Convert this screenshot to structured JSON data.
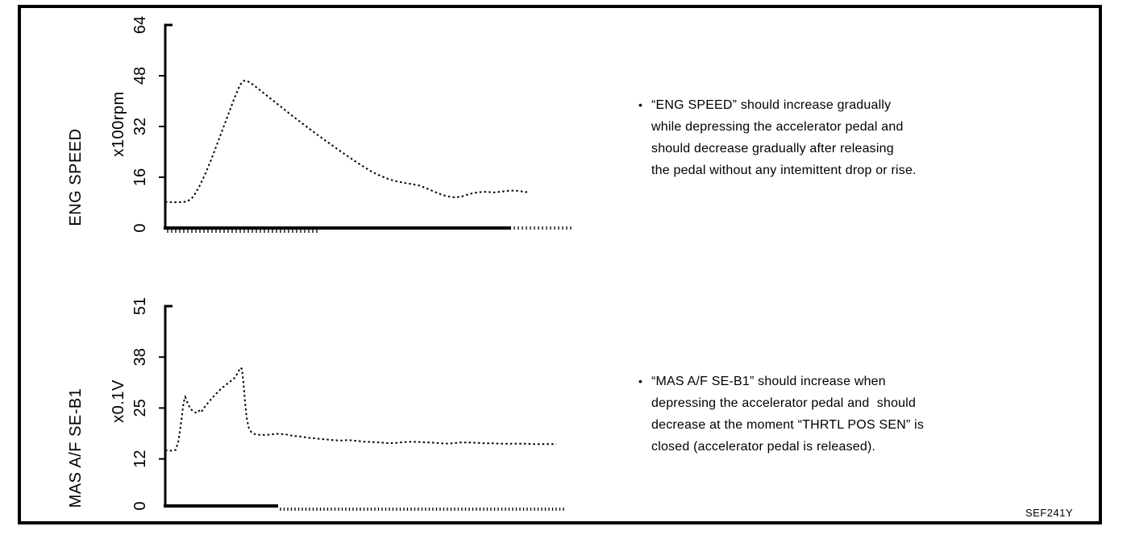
{
  "figure": {
    "code": "SEF241Y"
  },
  "notes": [
    {
      "bullet": "•",
      "text": "“ENG SPEED” should increase gradually\nwhile depressing the accelerator pedal and\nshould decrease gradually after releasing\nthe pedal without any intemittent drop or rise."
    },
    {
      "bullet": "•",
      "text": "“MAS A/F SE-B1” should increase when\ndepressing the accelerator pedal and  should\ndecrease at the moment “THRTL POS SEN” is\nclosed (accelerator pedal is released)."
    }
  ],
  "chart_data": [
    {
      "type": "line",
      "title": "",
      "ylabel": "ENG SPEED",
      "unit": "x100rpm",
      "xlabel": "",
      "ylim": [
        0,
        64
      ],
      "yticks": [
        0,
        16,
        32,
        48,
        64
      ],
      "line_style": "dotted",
      "grid": false,
      "points_x_pct_value": [
        [
          0,
          8.2
        ],
        [
          3,
          8.1
        ],
        [
          5.5,
          8.3
        ],
        [
          7,
          9.8
        ],
        [
          8.5,
          13
        ],
        [
          10,
          17
        ],
        [
          11.5,
          21.5
        ],
        [
          13,
          26.5
        ],
        [
          14.5,
          31.5
        ],
        [
          16,
          36.5
        ],
        [
          17.5,
          41.5
        ],
        [
          18.7,
          45
        ],
        [
          19.6,
          46.4
        ],
        [
          20.6,
          46.3
        ],
        [
          22,
          45.2
        ],
        [
          24,
          43.2
        ],
        [
          26,
          41.2
        ],
        [
          28,
          39.2
        ],
        [
          30,
          37.2
        ],
        [
          32,
          35.2
        ],
        [
          34,
          33.3
        ],
        [
          36,
          31.4
        ],
        [
          38,
          29.5
        ],
        [
          40,
          27.7
        ],
        [
          42,
          25.9
        ],
        [
          44,
          24.1
        ],
        [
          46,
          22.4
        ],
        [
          48,
          20.7
        ],
        [
          50,
          19.1
        ],
        [
          52,
          17.6
        ],
        [
          54,
          16.4
        ],
        [
          56,
          15.4
        ],
        [
          58,
          14.7
        ],
        [
          60,
          14.2
        ],
        [
          62,
          13.8
        ],
        [
          63.6,
          13.4
        ],
        [
          65.5,
          12.5
        ],
        [
          67.5,
          11.4
        ],
        [
          69.5,
          10.4
        ],
        [
          71.5,
          9.8
        ],
        [
          72.7,
          9.6
        ],
        [
          74.5,
          10.0
        ],
        [
          76.5,
          10.8
        ],
        [
          78.5,
          11.3
        ],
        [
          80.5,
          11.4
        ],
        [
          82.5,
          11.2
        ],
        [
          84.5,
          11.5
        ],
        [
          86.5,
          11.8
        ],
        [
          88.5,
          11.7
        ],
        [
          90,
          11.4
        ],
        [
          91.3,
          11.2
        ]
      ]
    },
    {
      "type": "line",
      "title": "",
      "ylabel": "MAS A/F SE-B1",
      "unit": "x0.1V",
      "xlabel": "",
      "ylim": [
        0,
        51
      ],
      "yticks": [
        0,
        12,
        25,
        38,
        51
      ],
      "line_style": "dotted",
      "grid": false,
      "points_x_pct_value": [
        [
          0,
          14.2
        ],
        [
          1.5,
          14.1
        ],
        [
          2.6,
          14.3
        ],
        [
          3.3,
          16.5
        ],
        [
          4.0,
          21.5
        ],
        [
          4.6,
          26.5
        ],
        [
          5.0,
          27.8
        ],
        [
          5.6,
          26.3
        ],
        [
          6.3,
          24.8
        ],
        [
          7.1,
          24.1
        ],
        [
          7.9,
          23.7
        ],
        [
          8.5,
          24.3
        ],
        [
          9.0,
          23.9
        ],
        [
          9.7,
          25.0
        ],
        [
          10.7,
          26.3
        ],
        [
          11.7,
          27.5
        ],
        [
          12.7,
          28.6
        ],
        [
          13.7,
          29.6
        ],
        [
          14.7,
          30.5
        ],
        [
          15.7,
          31.3
        ],
        [
          16.7,
          32.1
        ],
        [
          17.5,
          32.8
        ],
        [
          18.2,
          34.0
        ],
        [
          18.8,
          35.3
        ],
        [
          19.2,
          35.0
        ],
        [
          19.6,
          31.5
        ],
        [
          20.0,
          26.5
        ],
        [
          20.4,
          22.5
        ],
        [
          20.9,
          20.0
        ],
        [
          21.6,
          18.8
        ],
        [
          22.5,
          18.3
        ],
        [
          24,
          18.1
        ],
        [
          26,
          18.2
        ],
        [
          28,
          18.4
        ],
        [
          30,
          18.3
        ],
        [
          32,
          17.9
        ],
        [
          34,
          17.7
        ],
        [
          36,
          17.4
        ],
        [
          38,
          17.2
        ],
        [
          40,
          17.0
        ],
        [
          42,
          16.8
        ],
        [
          44,
          16.7
        ],
        [
          46,
          16.8
        ],
        [
          48,
          16.6
        ],
        [
          50,
          16.4
        ],
        [
          52,
          16.3
        ],
        [
          54,
          16.2
        ],
        [
          56,
          16.0
        ],
        [
          58,
          16.1
        ],
        [
          60,
          16.3
        ],
        [
          62,
          16.4
        ],
        [
          64,
          16.3
        ],
        [
          66,
          16.2
        ],
        [
          68,
          16.1
        ],
        [
          70,
          15.9
        ],
        [
          72,
          16.0
        ],
        [
          74,
          16.2
        ],
        [
          76,
          16.2
        ],
        [
          78,
          16.1
        ],
        [
          80,
          16.0
        ],
        [
          82,
          16.0
        ],
        [
          84,
          15.9
        ],
        [
          86,
          15.9
        ],
        [
          88,
          15.9
        ],
        [
          90,
          15.9
        ],
        [
          92,
          15.8
        ],
        [
          94,
          15.8
        ],
        [
          96,
          15.8
        ],
        [
          98,
          15.8
        ]
      ]
    }
  ]
}
